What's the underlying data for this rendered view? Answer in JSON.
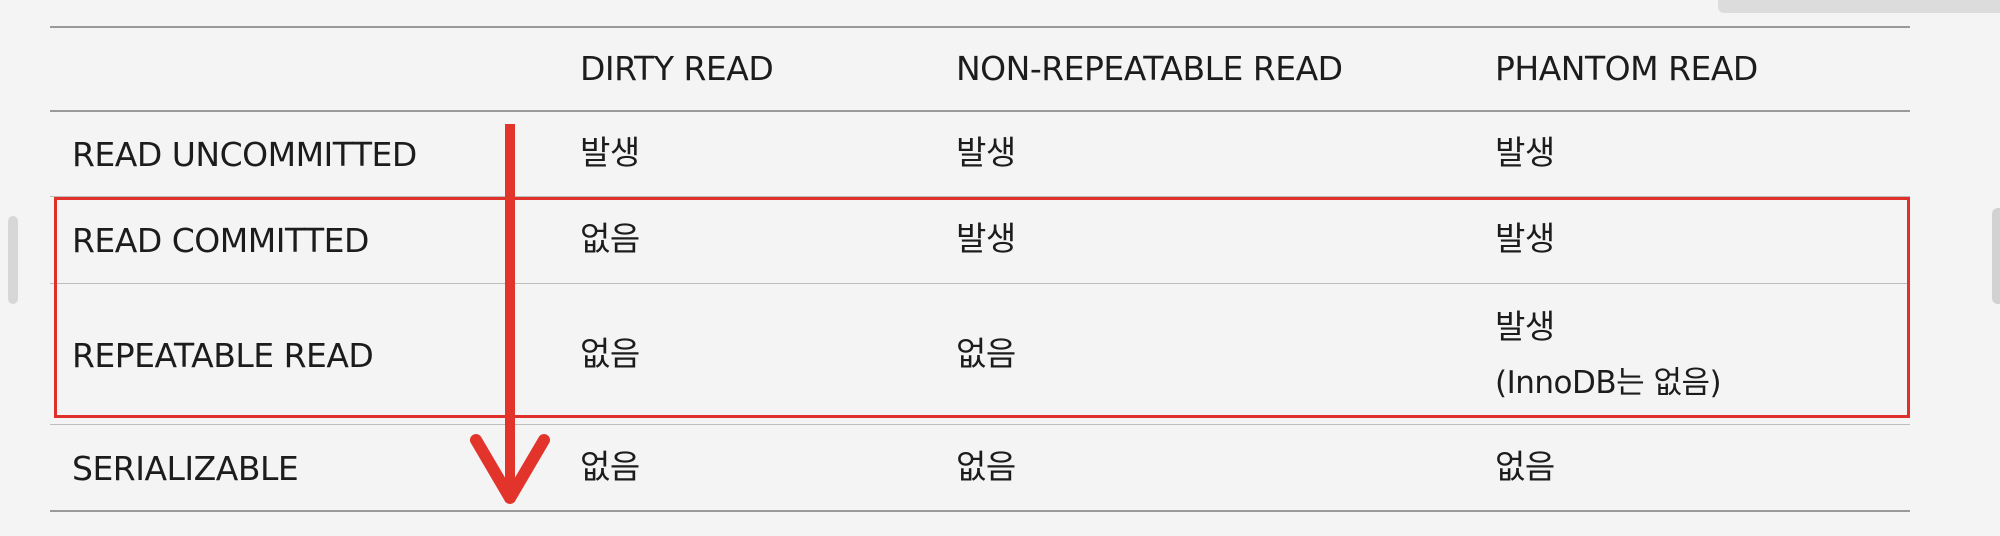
{
  "table": {
    "columns": [
      "",
      "DIRTY READ",
      "NON-REPEATABLE READ",
      "PHANTOM READ"
    ],
    "rows": [
      {
        "level": "READ UNCOMMITTED",
        "dirty": "발생",
        "nonrepeatable": "발생",
        "phantom": "발생",
        "phantom_note": ""
      },
      {
        "level": "READ COMMITTED",
        "dirty": "없음",
        "nonrepeatable": "발생",
        "phantom": "발생",
        "phantom_note": ""
      },
      {
        "level": "REPEATABLE READ",
        "dirty": "없음",
        "nonrepeatable": "없음",
        "phantom": "발생",
        "phantom_note": "(InnoDB는 없음)"
      },
      {
        "level": "SERIALIZABLE",
        "dirty": "없음",
        "nonrepeatable": "없음",
        "phantom": "없음",
        "phantom_note": ""
      }
    ]
  },
  "annotation": {
    "highlight_color": "#e0302a",
    "arrow_color": "#e3342b",
    "arrow_direction": "down"
  }
}
